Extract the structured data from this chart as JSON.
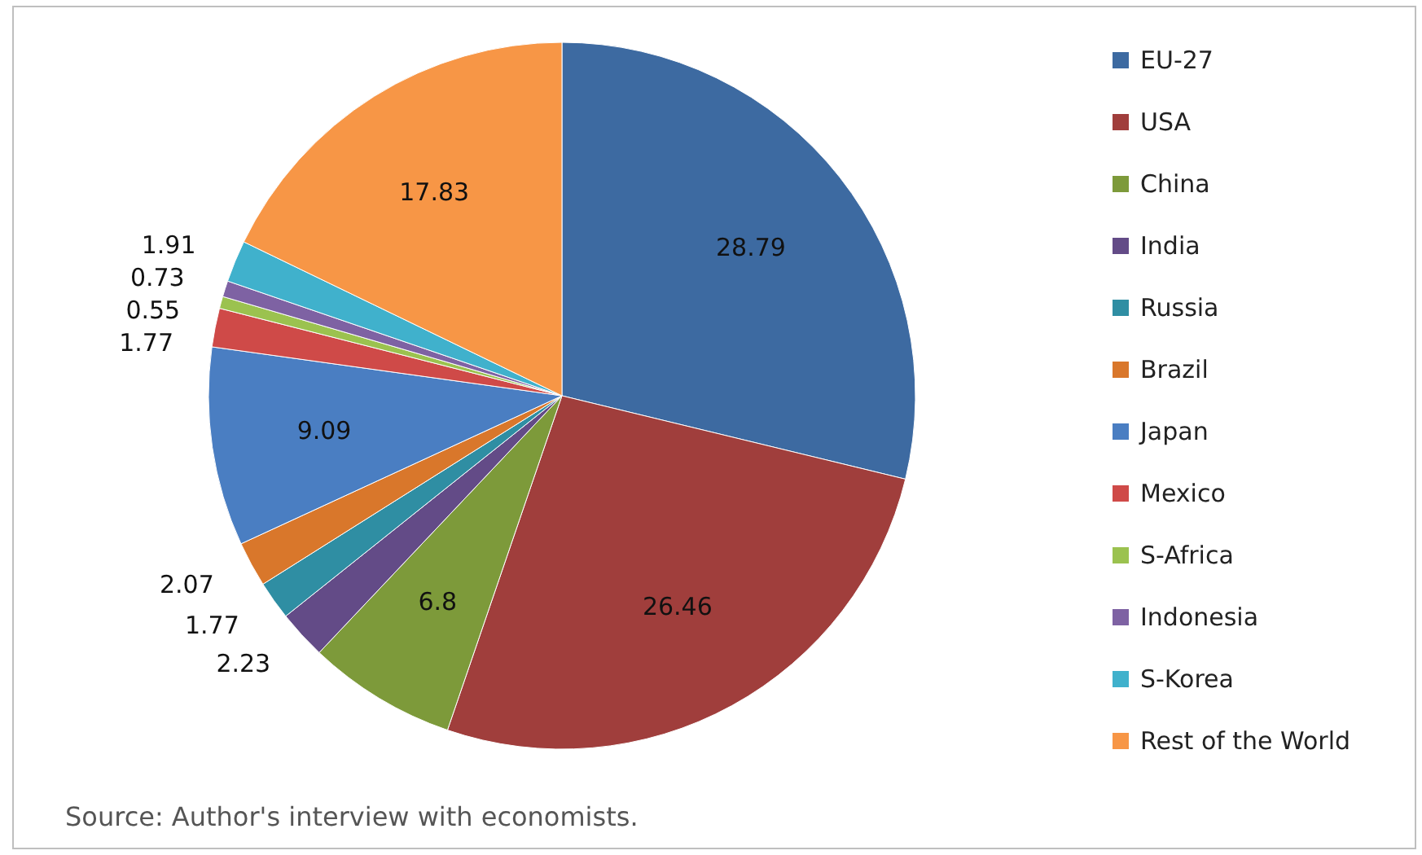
{
  "chart_data": {
    "type": "pie",
    "categories": [
      "EU-27",
      "USA",
      "China",
      "India",
      "Russia",
      "Brazil",
      "Japan",
      "Mexico",
      "S-Africa",
      "Indonesia",
      "S-Korea",
      "Rest of the World"
    ],
    "values": [
      28.79,
      26.46,
      6.8,
      2.23,
      1.77,
      2.07,
      9.09,
      1.77,
      0.55,
      0.73,
      1.91,
      17.83
    ],
    "colors": [
      "#3d6aa1",
      "#a03e3c",
      "#7d9a3a",
      "#634b87",
      "#2f8ea3",
      "#d9772b",
      "#4a7ec2",
      "#cf4a48",
      "#9bc24f",
      "#7e62a3",
      "#40b1cc",
      "#f79646"
    ],
    "data_labels": true,
    "legend": "right",
    "annotations": [
      "Source: Author's interview with economists."
    ]
  }
}
